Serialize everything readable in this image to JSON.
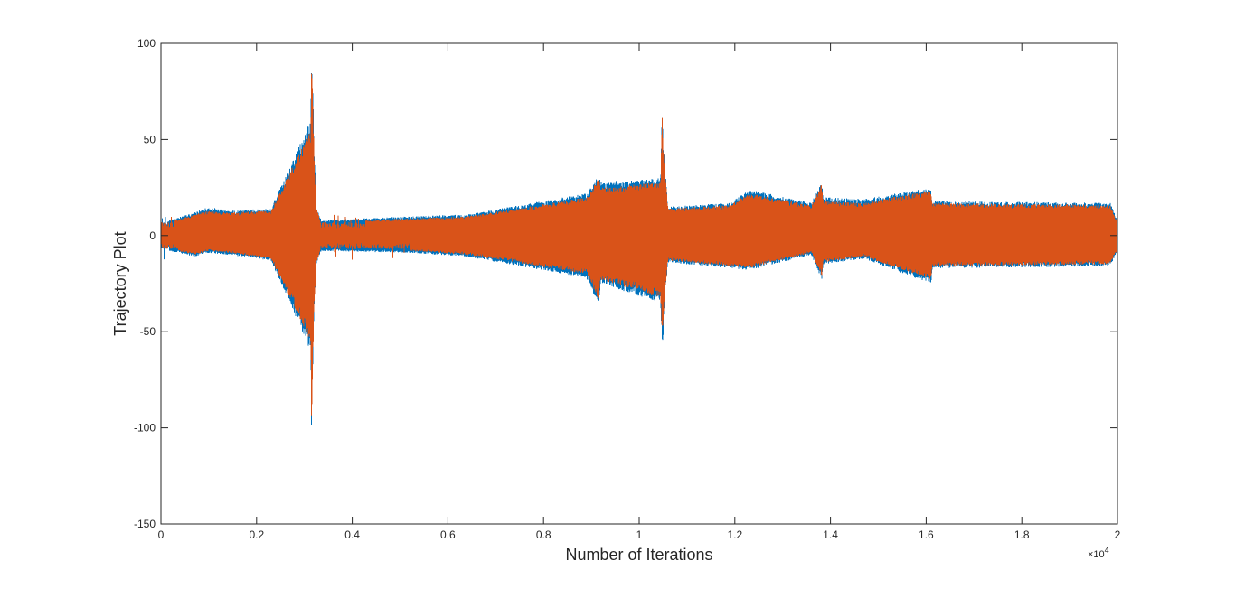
{
  "chart_data": {
    "type": "line",
    "title": "",
    "xlabel": "Number of Iterations",
    "ylabel": "Trajectory Plot",
    "xlim": [
      0,
      20000
    ],
    "ylim": [
      -150,
      100
    ],
    "x_ticks": [
      0,
      2000,
      4000,
      6000,
      8000,
      10000,
      12000,
      14000,
      16000,
      18000,
      20000
    ],
    "x_tick_labels": [
      "0",
      "0.2",
      "0.4",
      "0.6",
      "0.8",
      "1",
      "1.2",
      "1.4",
      "1.6",
      "1.8",
      "2"
    ],
    "x_exponent_label": "×10",
    "x_exponent_power": "4",
    "y_ticks": [
      -150,
      -100,
      -50,
      0,
      50,
      100
    ],
    "y_tick_labels": [
      "-150",
      "-100",
      "-50",
      "0",
      "50",
      "100"
    ],
    "grid": false,
    "legend": "none",
    "baseline_band": [
      -7,
      7
    ],
    "series": [
      {
        "color": "#0072BD",
        "x": [
          0,
          700,
          1000,
          1400,
          2300,
          3130,
          3150,
          3170,
          3200,
          3250,
          3350,
          5200,
          6400,
          8900,
          9150,
          9200,
          10450,
          10480,
          10500,
          10530,
          10600,
          11900,
          12300,
          13600,
          13820,
          13850,
          14700,
          16100,
          16130,
          19850,
          20000
        ],
        "y_max": [
          7,
          12,
          15,
          13,
          14,
          60,
          97,
          85,
          50,
          15,
          8,
          10,
          11,
          22,
          31,
          28,
          30,
          67,
          52,
          40,
          15,
          17,
          24,
          17,
          28,
          20,
          19,
          25,
          18,
          17,
          8
        ],
        "y_min": [
          -7,
          -11,
          -9,
          -10,
          -13,
          -60,
          -105,
          -77,
          -40,
          -15,
          -8,
          -9,
          -11,
          -22,
          -36,
          -25,
          -35,
          -59,
          -55,
          -35,
          -14,
          -17,
          -18,
          -10,
          -23,
          -15,
          -12,
          -25,
          -17,
          -16,
          -8
        ]
      },
      {
        "color": "#D95319",
        "x": [
          0,
          700,
          1000,
          1400,
          2300,
          3130,
          3150,
          3170,
          3200,
          3250,
          3350,
          5200,
          6400,
          8900,
          9150,
          9200,
          10450,
          10480,
          10500,
          10530,
          10600,
          11900,
          12300,
          13600,
          13820,
          13850,
          14700,
          16100,
          16130,
          19850,
          20000
        ],
        "y_max": [
          6,
          11,
          13,
          12,
          13,
          55,
          97,
          80,
          45,
          14,
          7,
          9,
          10,
          20,
          30,
          25,
          28,
          67,
          50,
          38,
          14,
          16,
          22,
          16,
          27,
          18,
          17,
          24,
          17,
          16,
          7
        ],
        "y_min": [
          -6,
          -10,
          -8,
          -9,
          -12,
          -55,
          -100,
          -75,
          -38,
          -14,
          -7,
          -8,
          -10,
          -20,
          -33,
          -23,
          -32,
          -55,
          -50,
          -32,
          -13,
          -16,
          -17,
          -9,
          -21,
          -14,
          -11,
          -23,
          -16,
          -15,
          -7
        ]
      }
    ]
  }
}
